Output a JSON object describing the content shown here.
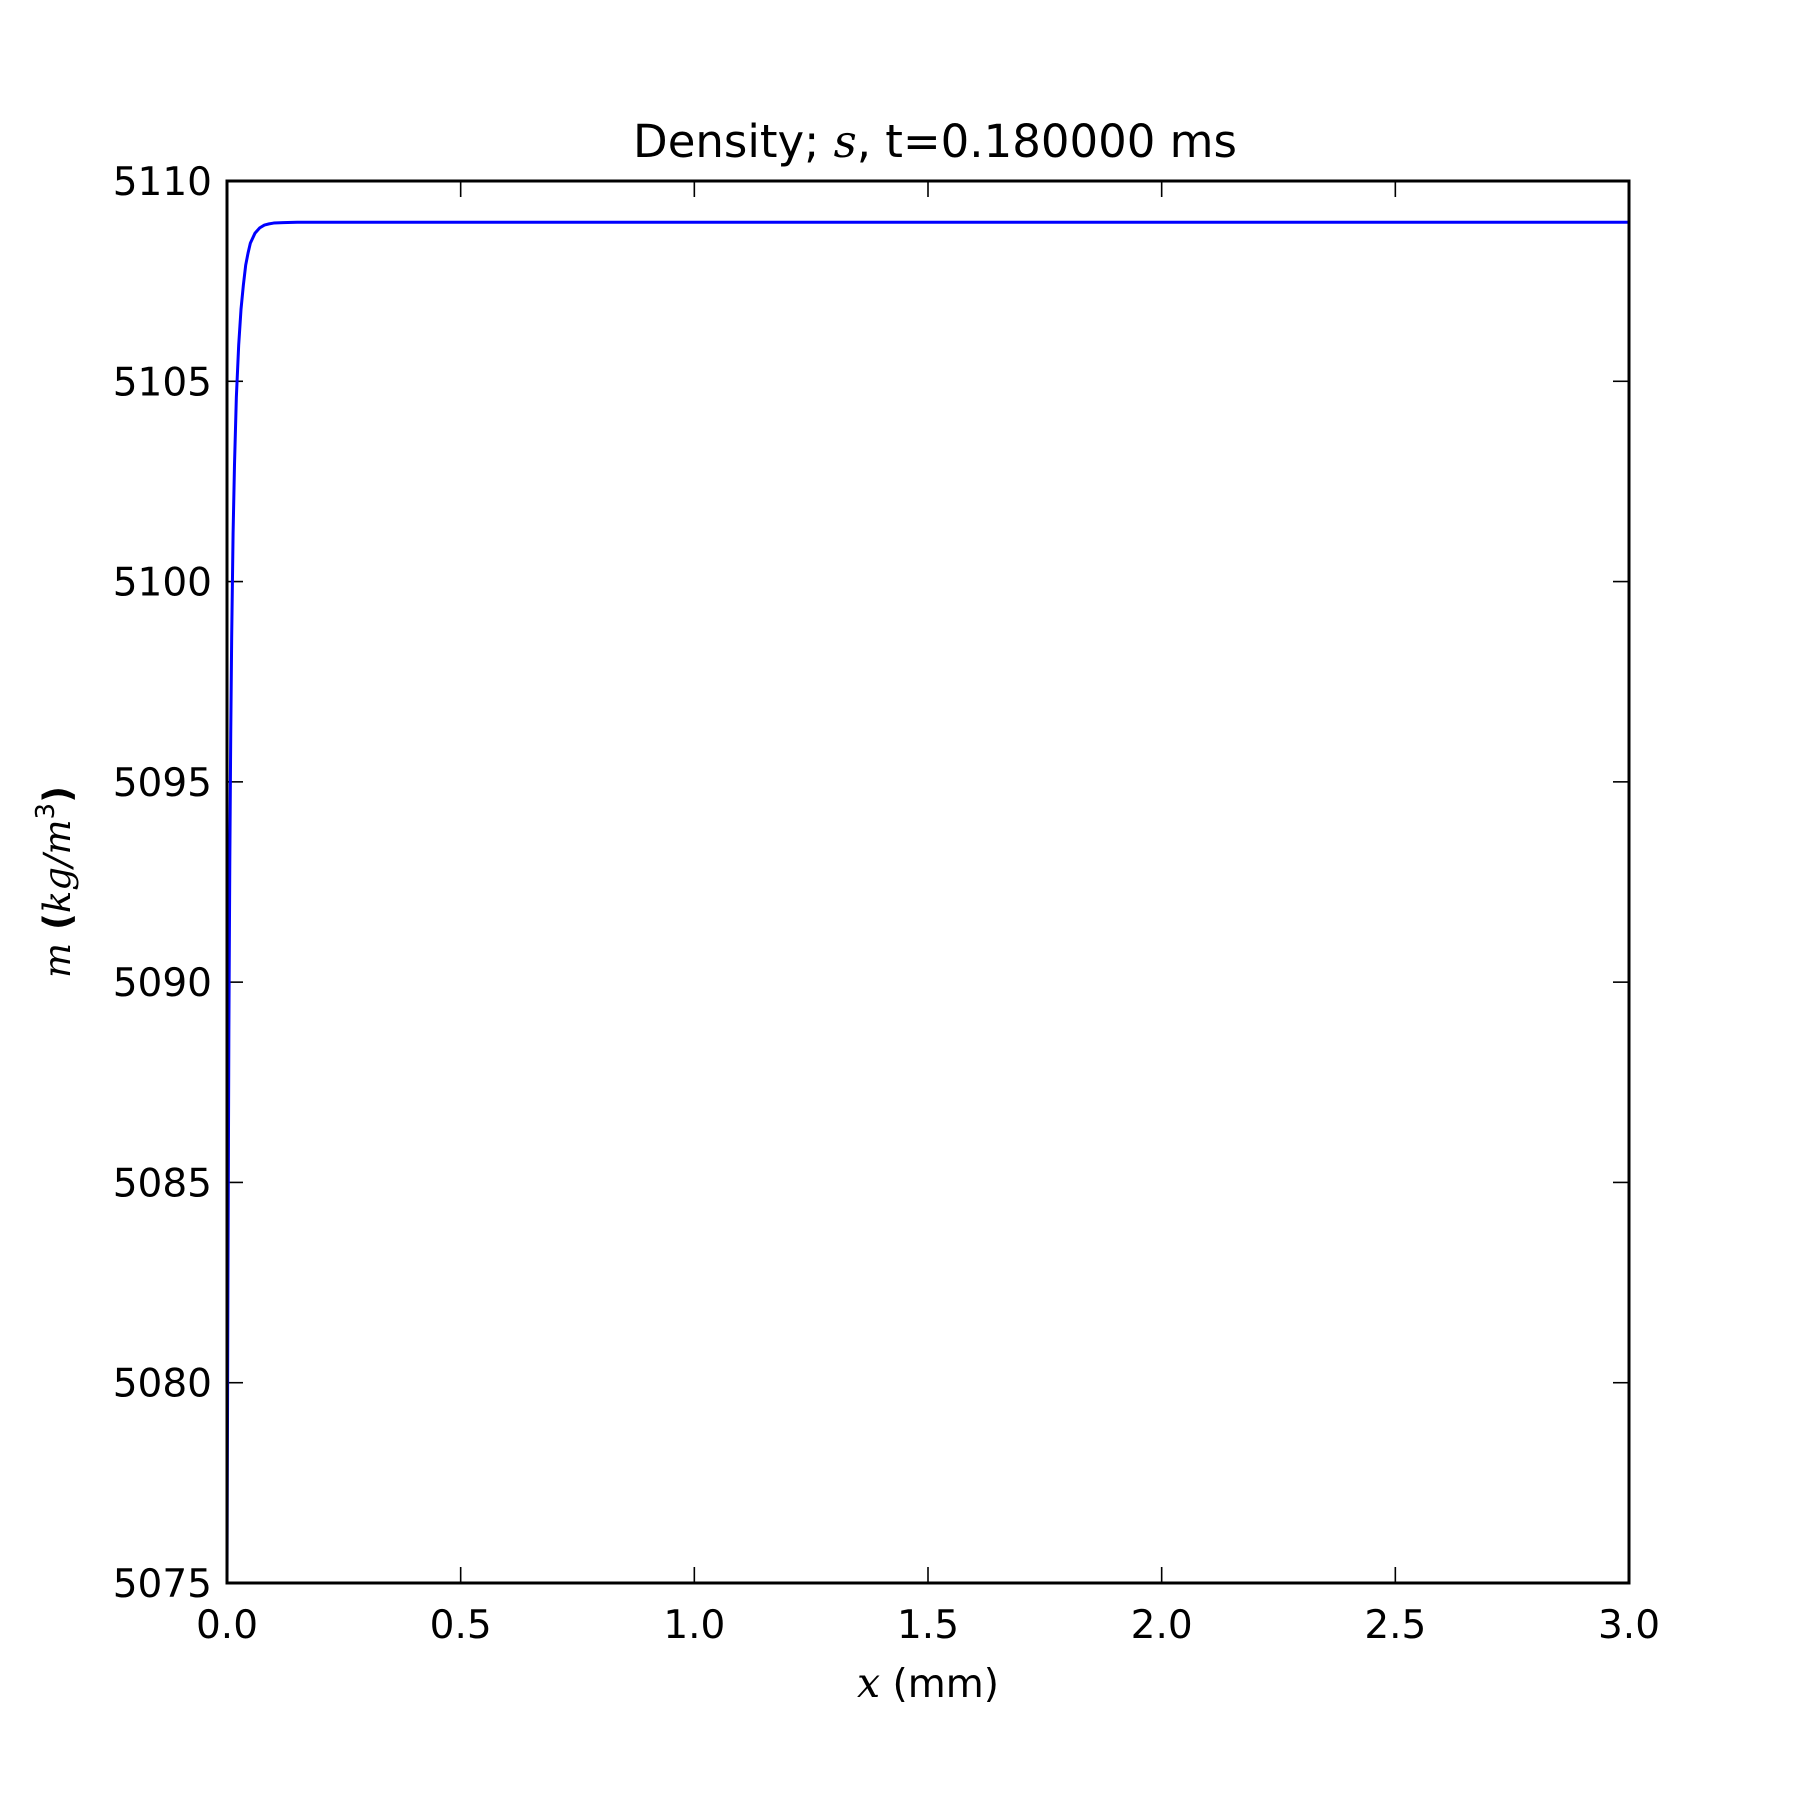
{
  "chart_data": {
    "type": "line",
    "title": {
      "prefix": "Density; ",
      "math": "s",
      "suffix": ", t=0.180000 ms"
    },
    "xlabel": {
      "math": "x",
      "suffix": " (mm)"
    },
    "ylabel": {
      "math_var": "m",
      "open": " (",
      "math_unit": "kg/m",
      "exponent": "3",
      "close": ")"
    },
    "xlim": [
      0.0,
      3.0
    ],
    "ylim": [
      5075,
      5110
    ],
    "xticks": [
      0.0,
      0.5,
      1.0,
      1.5,
      2.0,
      2.5,
      3.0
    ],
    "xtick_labels": [
      "0.0",
      "0.5",
      "1.0",
      "1.5",
      "2.0",
      "2.5",
      "3.0"
    ],
    "yticks": [
      5075,
      5080,
      5085,
      5090,
      5095,
      5100,
      5105,
      5110
    ],
    "ytick_labels": [
      "5075",
      "5080",
      "5085",
      "5090",
      "5095",
      "5100",
      "5105",
      "5110"
    ],
    "grid": false,
    "series": [
      {
        "color": "#0000ff",
        "x": [
          0.0,
          0.002,
          0.004,
          0.006,
          0.008,
          0.01,
          0.013,
          0.016,
          0.02,
          0.025,
          0.03,
          0.035,
          0.04,
          0.045,
          0.05,
          0.06,
          0.07,
          0.08,
          0.09,
          0.1,
          0.12,
          0.15,
          0.2,
          0.3,
          0.5,
          1.0,
          1.5,
          2.0,
          2.5,
          3.0
        ],
        "y": [
          5075.0,
          5082.5,
          5088.8,
          5093.0,
          5096.2,
          5098.6,
          5101.2,
          5102.9,
          5104.6,
          5105.9,
          5106.8,
          5107.4,
          5107.9,
          5108.2,
          5108.45,
          5108.7,
          5108.83,
          5108.9,
          5108.93,
          5108.95,
          5108.96,
          5108.97,
          5108.97,
          5108.97,
          5108.97,
          5108.97,
          5108.97,
          5108.97,
          5108.97,
          5108.97
        ]
      }
    ]
  }
}
